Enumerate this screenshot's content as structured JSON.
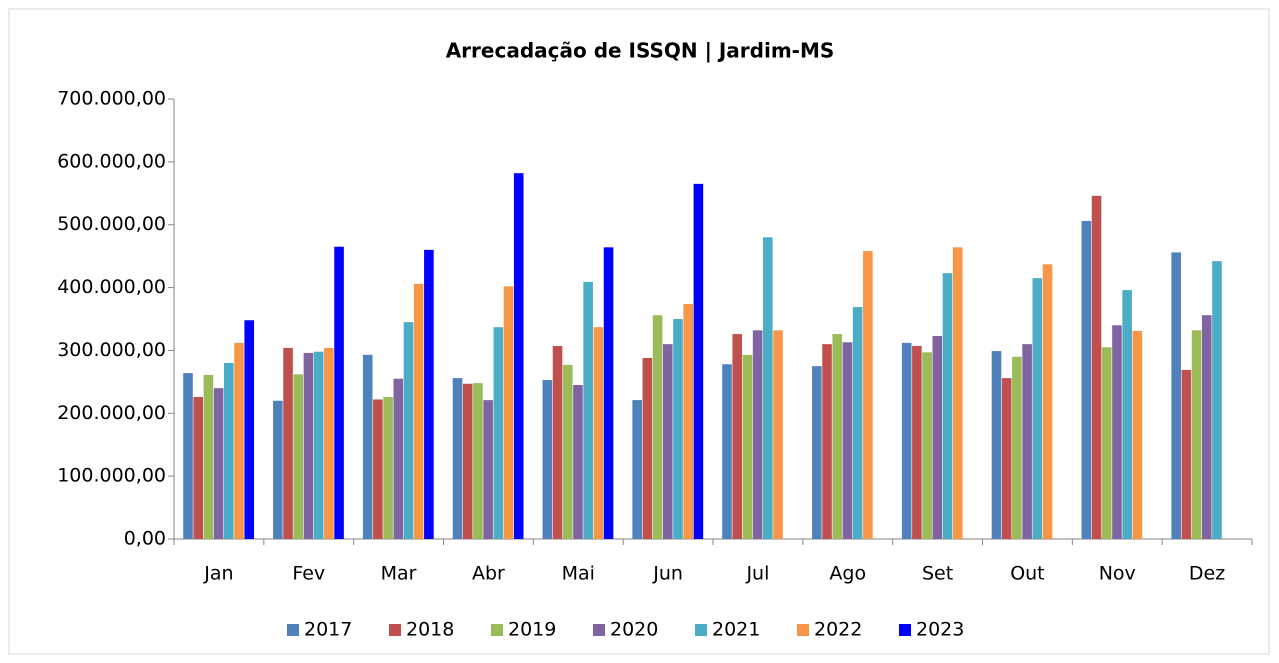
{
  "chart_data": {
    "type": "bar",
    "title": "Arrecadação de ISSQN | Jardim-MS",
    "categories": [
      "Jan",
      "Fev",
      "Mar",
      "Abr",
      "Mai",
      "Jun",
      "Jul",
      "Ago",
      "Set",
      "Out",
      "Nov",
      "Dez"
    ],
    "series": [
      {
        "name": "2017",
        "color": "#4f81bd",
        "values": [
          264000,
          220000,
          293000,
          256000,
          253000,
          221000,
          278000,
          275000,
          312000,
          299000,
          506000,
          456000
        ]
      },
      {
        "name": "2018",
        "color": "#c0504d",
        "values": [
          226000,
          304000,
          222000,
          247000,
          307000,
          288000,
          326000,
          310000,
          307000,
          256000,
          546000,
          269000
        ]
      },
      {
        "name": "2019",
        "color": "#9bbb59",
        "values": [
          261000,
          262000,
          226000,
          248000,
          277000,
          356000,
          293000,
          326000,
          297000,
          290000,
          305000,
          332000
        ]
      },
      {
        "name": "2020",
        "color": "#8064a2",
        "values": [
          240000,
          296000,
          255000,
          221000,
          245000,
          310000,
          332000,
          313000,
          323000,
          310000,
          340000,
          356000
        ]
      },
      {
        "name": "2021",
        "color": "#4bacc6",
        "values": [
          280000,
          298000,
          345000,
          337000,
          409000,
          350000,
          480000,
          369000,
          423000,
          415000,
          396000,
          442000
        ]
      },
      {
        "name": "2022",
        "color": "#f79646",
        "values": [
          312000,
          304000,
          406000,
          402000,
          337000,
          374000,
          332000,
          458000,
          464000,
          437000,
          331000,
          null
        ]
      },
      {
        "name": "2023",
        "color": "#0000ff",
        "values": [
          348000,
          465000,
          460000,
          582000,
          464000,
          565000,
          null,
          null,
          null,
          null,
          null,
          null
        ]
      }
    ],
    "ylim": [
      0,
      700000
    ],
    "yticks": [
      {
        "value": 0,
        "label": "0,00"
      },
      {
        "value": 100000,
        "label": "100.000,00"
      },
      {
        "value": 200000,
        "label": "200.000,00"
      },
      {
        "value": 300000,
        "label": "300.000,00"
      },
      {
        "value": 400000,
        "label": "400.000,00"
      },
      {
        "value": 500000,
        "label": "500.000,00"
      },
      {
        "value": 600000,
        "label": "600.000,00"
      },
      {
        "value": 700000,
        "label": "700.000,00"
      }
    ],
    "grid": false,
    "legend": "bottom"
  }
}
